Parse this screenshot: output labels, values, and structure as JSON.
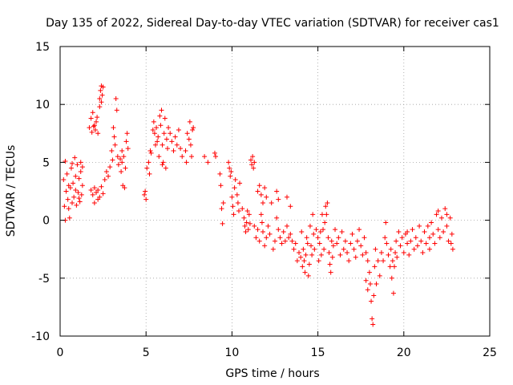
{
  "chart_data": {
    "type": "scatter",
    "title": "Day 135 of 2022, Sidereal Day-to-day VTEC variation (SDTVAR) for receiver cas1",
    "xlabel": "GPS time / hours",
    "ylabel": "SDTVAR / TECUs",
    "xlim": [
      0,
      25
    ],
    "ylim": [
      -10,
      15
    ],
    "xticks": [
      0,
      5,
      10,
      15,
      20,
      25
    ],
    "yticks": [
      -10,
      -5,
      0,
      5,
      10,
      15
    ],
    "grid": true,
    "marker": "+",
    "series": [
      {
        "name": "SDTVAR",
        "color": "#ff0000",
        "points": [
          [
            0.2,
            3.5
          ],
          [
            0.25,
            1.2
          ],
          [
            0.3,
            5.1
          ],
          [
            0.3,
            0.0
          ],
          [
            0.35,
            2.5
          ],
          [
            0.4,
            4.0
          ],
          [
            0.45,
            1.8
          ],
          [
            0.5,
            3.0
          ],
          [
            0.55,
            0.2
          ],
          [
            0.6,
            2.8
          ],
          [
            0.65,
            4.5
          ],
          [
            0.7,
            1.5
          ],
          [
            0.75,
            3.2
          ],
          [
            0.8,
            2.0
          ],
          [
            0.85,
            5.4
          ],
          [
            0.9,
            3.8
          ],
          [
            0.95,
            1.3
          ],
          [
            1.0,
            4.8
          ],
          [
            1.05,
            2.4
          ],
          [
            1.1,
            3.6
          ],
          [
            1.15,
            1.6
          ],
          [
            1.2,
            4.2
          ],
          [
            1.25,
            2.2
          ],
          [
            1.3,
            3.0
          ],
          [
            1.2,
            5.0
          ],
          [
            0.5,
            1.0
          ],
          [
            0.9,
            2.6
          ],
          [
            1.1,
            1.9
          ],
          [
            0.7,
            4.9
          ],
          [
            1.3,
            4.6
          ],
          [
            1.7,
            8.0
          ],
          [
            1.8,
            8.8
          ],
          [
            1.85,
            7.6
          ],
          [
            1.9,
            9.3
          ],
          [
            2.0,
            8.2
          ],
          [
            2.05,
            7.8
          ],
          [
            2.1,
            8.5
          ],
          [
            2.2,
            7.5
          ],
          [
            1.95,
            8.1
          ],
          [
            2.15,
            8.9
          ],
          [
            2.3,
            10.5
          ],
          [
            2.35,
            11.2
          ],
          [
            2.4,
            11.6
          ],
          [
            2.45,
            10.8
          ],
          [
            2.5,
            11.5
          ],
          [
            2.3,
            9.8
          ],
          [
            2.4,
            10.2
          ],
          [
            1.8,
            2.6
          ],
          [
            1.9,
            2.2
          ],
          [
            2.0,
            2.8
          ],
          [
            2.1,
            2.4
          ],
          [
            2.2,
            2.6
          ],
          [
            2.3,
            2.0
          ],
          [
            2.4,
            2.9
          ],
          [
            2.5,
            2.3
          ],
          [
            2.0,
            1.5
          ],
          [
            2.2,
            1.8
          ],
          [
            2.6,
            3.5
          ],
          [
            2.7,
            4.2
          ],
          [
            2.8,
            3.8
          ],
          [
            2.9,
            4.6
          ],
          [
            3.0,
            6.0
          ],
          [
            3.05,
            5.2
          ],
          [
            3.1,
            8.0
          ],
          [
            3.15,
            7.2
          ],
          [
            3.2,
            6.5
          ],
          [
            3.25,
            10.5
          ],
          [
            3.3,
            9.5
          ],
          [
            3.35,
            5.5
          ],
          [
            3.4,
            4.8
          ],
          [
            3.5,
            5.3
          ],
          [
            3.55,
            4.2
          ],
          [
            3.6,
            6.0
          ],
          [
            3.65,
            3.0
          ],
          [
            3.7,
            5.5
          ],
          [
            3.75,
            2.8
          ],
          [
            3.8,
            4.5
          ],
          [
            3.85,
            6.8
          ],
          [
            3.9,
            7.5
          ],
          [
            3.95,
            6.2
          ],
          [
            3.6,
            5.0
          ],
          [
            4.95,
            2.5
          ],
          [
            5.0,
            1.8
          ],
          [
            4.9,
            2.2
          ],
          [
            5.05,
            4.5
          ],
          [
            5.15,
            5.0
          ],
          [
            5.2,
            4.0
          ],
          [
            5.25,
            6.0
          ],
          [
            5.3,
            5.8
          ],
          [
            5.4,
            7.8
          ],
          [
            5.45,
            8.5
          ],
          [
            5.5,
            7.5
          ],
          [
            5.55,
            6.5
          ],
          [
            5.6,
            8.0
          ],
          [
            5.65,
            6.8
          ],
          [
            5.7,
            7.2
          ],
          [
            5.75,
            5.5
          ],
          [
            5.8,
            9.0
          ],
          [
            5.85,
            8.2
          ],
          [
            5.9,
            9.5
          ],
          [
            5.95,
            6.5
          ],
          [
            6.0,
            5.0
          ],
          [
            6.05,
            7.5
          ],
          [
            6.1,
            8.8
          ],
          [
            6.15,
            4.5
          ],
          [
            6.2,
            7.0
          ],
          [
            6.3,
            8.0
          ],
          [
            6.4,
            7.5
          ],
          [
            6.5,
            6.8
          ],
          [
            6.6,
            6.0
          ],
          [
            6.7,
            7.2
          ],
          [
            6.8,
            6.5
          ],
          [
            6.9,
            7.8
          ],
          [
            7.0,
            6.2
          ],
          [
            7.1,
            5.5
          ],
          [
            5.95,
            4.8
          ],
          [
            6.25,
            6.2
          ],
          [
            7.3,
            6.0
          ],
          [
            7.4,
            7.5
          ],
          [
            7.5,
            7.0
          ],
          [
            7.55,
            8.5
          ],
          [
            7.6,
            6.5
          ],
          [
            7.65,
            5.5
          ],
          [
            7.7,
            7.8
          ],
          [
            7.75,
            8.0
          ],
          [
            7.35,
            5.0
          ],
          [
            8.4,
            5.5
          ],
          [
            8.6,
            5.0
          ],
          [
            9.0,
            5.8
          ],
          [
            9.05,
            5.5
          ],
          [
            9.3,
            4.0
          ],
          [
            9.35,
            3.0
          ],
          [
            9.4,
            1.0
          ],
          [
            9.45,
            -0.3
          ],
          [
            9.5,
            1.5
          ],
          [
            9.8,
            5.0
          ],
          [
            9.85,
            4.5
          ],
          [
            9.9,
            3.8
          ],
          [
            9.95,
            4.2
          ],
          [
            10.0,
            2.0
          ],
          [
            10.05,
            1.2
          ],
          [
            10.1,
            0.5
          ],
          [
            10.15,
            2.8
          ],
          [
            10.2,
            3.5
          ],
          [
            10.3,
            2.2
          ],
          [
            10.35,
            1.5
          ],
          [
            10.4,
            0.8
          ],
          [
            10.45,
            3.2
          ],
          [
            10.6,
            1.0
          ],
          [
            10.7,
            0.2
          ],
          [
            10.75,
            -0.5
          ],
          [
            10.8,
            -1.0
          ],
          [
            10.85,
            -0.2
          ],
          [
            10.9,
            0.8
          ],
          [
            10.95,
            -0.8
          ],
          [
            11.0,
            0.5
          ],
          [
            11.05,
            -0.3
          ],
          [
            11.1,
            5.2
          ],
          [
            11.15,
            4.8
          ],
          [
            11.2,
            5.5
          ],
          [
            11.25,
            4.5
          ],
          [
            11.3,
            5.0
          ],
          [
            11.3,
            -0.5
          ],
          [
            11.4,
            -1.5
          ],
          [
            11.5,
            -0.8
          ],
          [
            11.6,
            -1.8
          ],
          [
            11.7,
            0.5
          ],
          [
            11.75,
            -0.2
          ],
          [
            11.8,
            -1.0
          ],
          [
            11.9,
            -2.2
          ],
          [
            12.0,
            -1.5
          ],
          [
            11.5,
            2.5
          ],
          [
            11.6,
            3.0
          ],
          [
            11.7,
            2.2
          ],
          [
            11.8,
            1.5
          ],
          [
            11.9,
            2.8
          ],
          [
            12.0,
            2.0
          ],
          [
            12.1,
            -0.5
          ],
          [
            12.2,
            -1.2
          ],
          [
            12.3,
            1.5
          ],
          [
            12.4,
            -2.5
          ],
          [
            12.5,
            -1.8
          ],
          [
            12.6,
            0.2
          ],
          [
            12.7,
            -0.8
          ],
          [
            12.8,
            -1.5
          ],
          [
            12.9,
            -2.0
          ],
          [
            12.6,
            2.5
          ],
          [
            12.7,
            1.8
          ],
          [
            13.0,
            -1.0
          ],
          [
            13.1,
            -1.8
          ],
          [
            13.2,
            -0.5
          ],
          [
            13.3,
            -1.5
          ],
          [
            13.4,
            -1.2
          ],
          [
            13.5,
            -1.8
          ],
          [
            13.6,
            -2.5
          ],
          [
            13.2,
            2.0
          ],
          [
            13.4,
            1.2
          ],
          [
            13.7,
            -2.0
          ],
          [
            13.8,
            -3.5
          ],
          [
            13.9,
            -2.8
          ],
          [
            14.0,
            -3.2
          ],
          [
            14.05,
            -1.0
          ],
          [
            14.1,
            -4.0
          ],
          [
            14.15,
            -2.5
          ],
          [
            14.2,
            -3.5
          ],
          [
            14.25,
            -4.5
          ],
          [
            14.3,
            -3.0
          ],
          [
            14.35,
            -1.5
          ],
          [
            14.4,
            -2.0
          ],
          [
            14.45,
            -4.8
          ],
          [
            14.5,
            -3.8
          ],
          [
            14.55,
            -0.5
          ],
          [
            14.6,
            -2.2
          ],
          [
            14.65,
            -3.0
          ],
          [
            14.7,
            0.5
          ],
          [
            14.75,
            -1.2
          ],
          [
            14.8,
            -2.5
          ],
          [
            14.9,
            -0.8
          ],
          [
            15.0,
            -1.5
          ],
          [
            15.05,
            -3.5
          ],
          [
            15.1,
            -2.0
          ],
          [
            15.15,
            -1.0
          ],
          [
            15.2,
            -3.0
          ],
          [
            15.25,
            0.5
          ],
          [
            15.3,
            -0.8
          ],
          [
            15.35,
            -2.5
          ],
          [
            15.4,
            -0.2
          ],
          [
            15.45,
            1.2
          ],
          [
            15.5,
            0.5
          ],
          [
            15.55,
            1.5
          ],
          [
            15.6,
            -1.5
          ],
          [
            15.65,
            -2.8
          ],
          [
            15.7,
            -3.8
          ],
          [
            15.75,
            -4.5
          ],
          [
            15.8,
            -1.8
          ],
          [
            15.85,
            -3.2
          ],
          [
            15.9,
            -2.2
          ],
          [
            16.0,
            -0.8
          ],
          [
            16.1,
            -2.0
          ],
          [
            16.2,
            -1.5
          ],
          [
            16.3,
            -3.0
          ],
          [
            16.4,
            -1.0
          ],
          [
            16.5,
            -2.5
          ],
          [
            16.6,
            -1.8
          ],
          [
            16.7,
            -2.8
          ],
          [
            16.8,
            -3.5
          ],
          [
            16.9,
            -2.0
          ],
          [
            17.0,
            -1.2
          ],
          [
            17.1,
            -2.5
          ],
          [
            17.2,
            -3.2
          ],
          [
            17.3,
            -1.8
          ],
          [
            17.4,
            -0.8
          ],
          [
            17.5,
            -2.2
          ],
          [
            17.6,
            -3.0
          ],
          [
            17.7,
            -1.5
          ],
          [
            17.8,
            -2.8
          ],
          [
            17.9,
            -3.5
          ],
          [
            18.0,
            -4.5
          ],
          [
            18.05,
            -5.5
          ],
          [
            18.1,
            -7.0
          ],
          [
            18.15,
            -8.5
          ],
          [
            18.2,
            -9.0
          ],
          [
            18.25,
            -6.5
          ],
          [
            18.3,
            -4.0
          ],
          [
            18.35,
            -2.5
          ],
          [
            17.8,
            -5.2
          ],
          [
            17.9,
            -6.0
          ],
          [
            18.4,
            -5.5
          ],
          [
            18.5,
            -3.5
          ],
          [
            18.6,
            -4.8
          ],
          [
            18.7,
            -2.8
          ],
          [
            18.8,
            -3.5
          ],
          [
            18.9,
            -1.5
          ],
          [
            18.95,
            -0.2
          ],
          [
            19.0,
            -2.0
          ],
          [
            19.1,
            -3.0
          ],
          [
            19.2,
            -4.0
          ],
          [
            19.25,
            -2.5
          ],
          [
            19.3,
            -5.0
          ],
          [
            19.35,
            -3.5
          ],
          [
            19.4,
            -6.3
          ],
          [
            19.45,
            -4.0
          ],
          [
            19.5,
            -2.8
          ],
          [
            19.55,
            -1.8
          ],
          [
            19.6,
            -3.2
          ],
          [
            19.7,
            -1.0
          ],
          [
            19.8,
            -2.2
          ],
          [
            19.9,
            -1.5
          ],
          [
            20.0,
            -2.8
          ],
          [
            20.1,
            -1.2
          ],
          [
            20.2,
            -2.0
          ],
          [
            20.3,
            -3.0
          ],
          [
            20.4,
            -1.8
          ],
          [
            20.5,
            -0.8
          ],
          [
            20.6,
            -2.5
          ],
          [
            20.7,
            -1.5
          ],
          [
            20.8,
            -2.2
          ],
          [
            20.9,
            -0.5
          ],
          [
            21.0,
            -1.8
          ],
          [
            21.1,
            -2.8
          ],
          [
            21.2,
            -1.0
          ],
          [
            21.3,
            -2.0
          ],
          [
            21.4,
            -0.5
          ],
          [
            21.5,
            -1.5
          ],
          [
            21.6,
            -0.2
          ],
          [
            21.7,
            -1.2
          ],
          [
            21.8,
            -2.0
          ],
          [
            21.9,
            0.5
          ],
          [
            22.0,
            -0.8
          ],
          [
            22.1,
            -1.5
          ],
          [
            22.2,
            0.2
          ],
          [
            22.3,
            -1.0
          ],
          [
            22.4,
            1.0
          ],
          [
            22.5,
            -0.5
          ],
          [
            22.6,
            -1.8
          ],
          [
            22.7,
            0.2
          ],
          [
            22.75,
            -2.0
          ],
          [
            22.8,
            -1.2
          ],
          [
            22.85,
            -2.5
          ],
          [
            20.2,
            -1.0
          ],
          [
            21.5,
            -2.5
          ],
          [
            22.0,
            0.8
          ],
          [
            22.5,
            0.5
          ]
        ]
      }
    ]
  }
}
